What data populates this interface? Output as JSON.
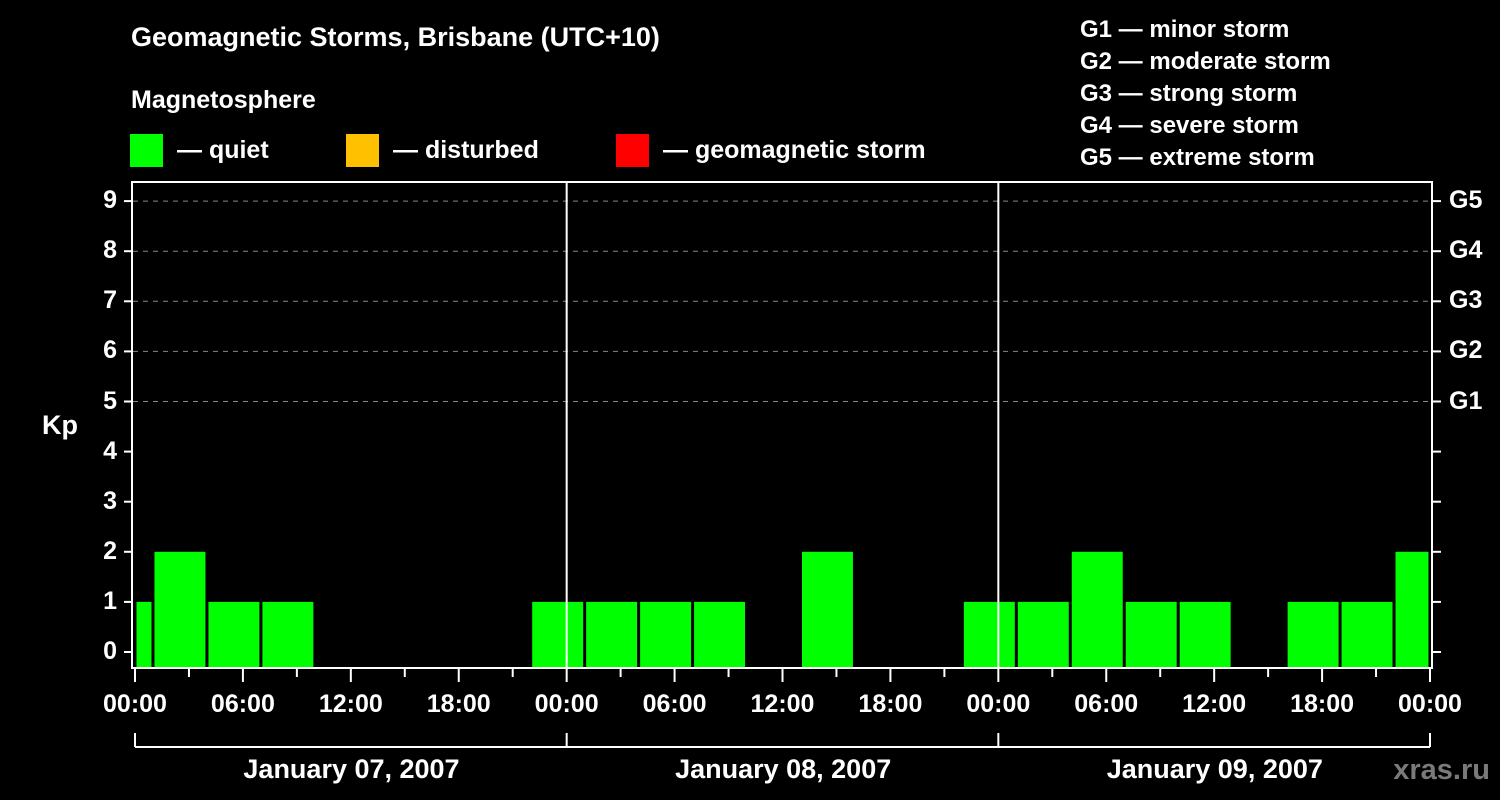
{
  "header": {
    "title": "Geomagnetic Storms, Brisbane (UTC+10)",
    "subtitle": "Magnetosphere"
  },
  "legend": [
    {
      "label": "— quiet",
      "color": "#00ff00"
    },
    {
      "label": "— disturbed",
      "color": "#ffc000"
    },
    {
      "label": "— geomagnetic storm",
      "color": "#ff0000"
    }
  ],
  "storm_scale": [
    "G1 — minor storm",
    "G2 — moderate storm",
    "G3 — strong storm",
    "G4 — severe storm",
    "G5 — extreme storm"
  ],
  "axes": {
    "ylabel": "Kp",
    "yticks": [
      "0",
      "1",
      "2",
      "3",
      "4",
      "5",
      "6",
      "7",
      "8",
      "9"
    ],
    "gticks": [
      {
        "label": "G1",
        "kp": 5
      },
      {
        "label": "G2",
        "kp": 6
      },
      {
        "label": "G3",
        "kp": 7
      },
      {
        "label": "G4",
        "kp": 8
      },
      {
        "label": "G5",
        "kp": 9
      }
    ],
    "xticks": [
      "00:00",
      "06:00",
      "12:00",
      "18:00",
      "00:00",
      "06:00",
      "12:00",
      "18:00",
      "00:00",
      "06:00",
      "12:00",
      "18:00",
      "00:00"
    ],
    "dates": [
      "January 07, 2007",
      "January 08, 2007",
      "January 09, 2007"
    ]
  },
  "watermark": "xras.ru",
  "chart_data": {
    "type": "bar",
    "title": "Geomagnetic Storms, Brisbane (UTC+10)",
    "subtitle": "Magnetosphere",
    "xlabel": "",
    "ylabel": "Kp",
    "ylim": [
      0,
      9
    ],
    "grid": "dashed horizontal lines at Kp 5–9",
    "legend_position": "top",
    "x_range_local_time": [
      "2007-01-07 00:00",
      "2007-01-10 00:00"
    ],
    "bar_interval_hours": 3,
    "categories": [
      "01-07 00:00–01:00",
      "01-07 01:00–04:00",
      "01-07 04:00–07:00",
      "01-07 07:00–10:00",
      "01-07 10:00–13:00",
      "01-07 13:00–16:00",
      "01-07 16:00–19:00",
      "01-07 19:00–22:00",
      "01-07 22:00–01:00",
      "01-08 01:00–04:00",
      "01-08 04:00–07:00",
      "01-08 07:00–10:00",
      "01-08 10:00–13:00",
      "01-08 13:00–16:00",
      "01-08 16:00–19:00",
      "01-08 19:00–22:00",
      "01-08 22:00–01:00",
      "01-09 01:00–04:00",
      "01-09 04:00–07:00",
      "01-09 07:00–10:00",
      "01-09 10:00–13:00",
      "01-09 13:00–16:00",
      "01-09 16:00–19:00",
      "01-09 19:00–22:00",
      "01-09 22:00–00:00"
    ],
    "start_hours": [
      0,
      1,
      4,
      7,
      10,
      13,
      16,
      19,
      22,
      25,
      28,
      31,
      34,
      37,
      40,
      43,
      46,
      49,
      52,
      55,
      58,
      61,
      64,
      67,
      70
    ],
    "end_hours": [
      1,
      4,
      7,
      10,
      13,
      16,
      19,
      22,
      25,
      28,
      31,
      34,
      37,
      40,
      43,
      46,
      49,
      52,
      55,
      58,
      61,
      64,
      67,
      70,
      72
    ],
    "values": [
      1,
      2,
      1,
      1,
      0,
      0,
      0,
      0,
      1,
      1,
      1,
      1,
      0,
      2,
      0,
      0,
      1,
      1,
      2,
      1,
      1,
      0,
      1,
      1,
      2
    ],
    "status": "all quiet (green)",
    "right_axis": {
      "G1": 5,
      "G2": 6,
      "G3": 7,
      "G4": 8,
      "G5": 9
    }
  }
}
